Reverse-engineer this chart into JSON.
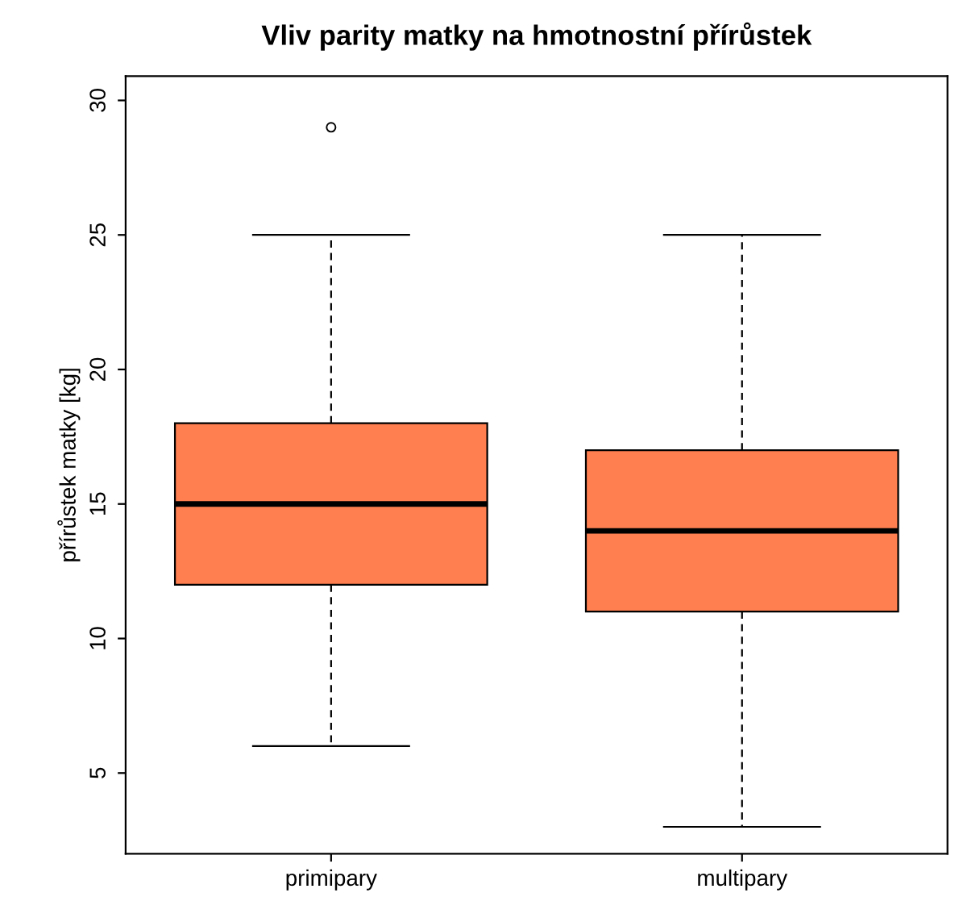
{
  "chart_data": {
    "type": "box",
    "title": "Vliv parity matky na hmotnostní přírůstek",
    "ylabel": "přírůstek matky [kg]",
    "categories": [
      "primipary",
      "multipary"
    ],
    "boxes": [
      {
        "low": 6,
        "q1": 12,
        "median": 15,
        "q3": 18,
        "high": 25,
        "outliers": [
          29
        ]
      },
      {
        "low": 3,
        "q1": 11,
        "median": 14,
        "q3": 17,
        "high": 25
      }
    ],
    "color": "#ff7f50",
    "ylim": [
      2.0,
      30.9
    ],
    "yticks": [
      5,
      10,
      15,
      20,
      25,
      30
    ],
    "grid": false
  }
}
